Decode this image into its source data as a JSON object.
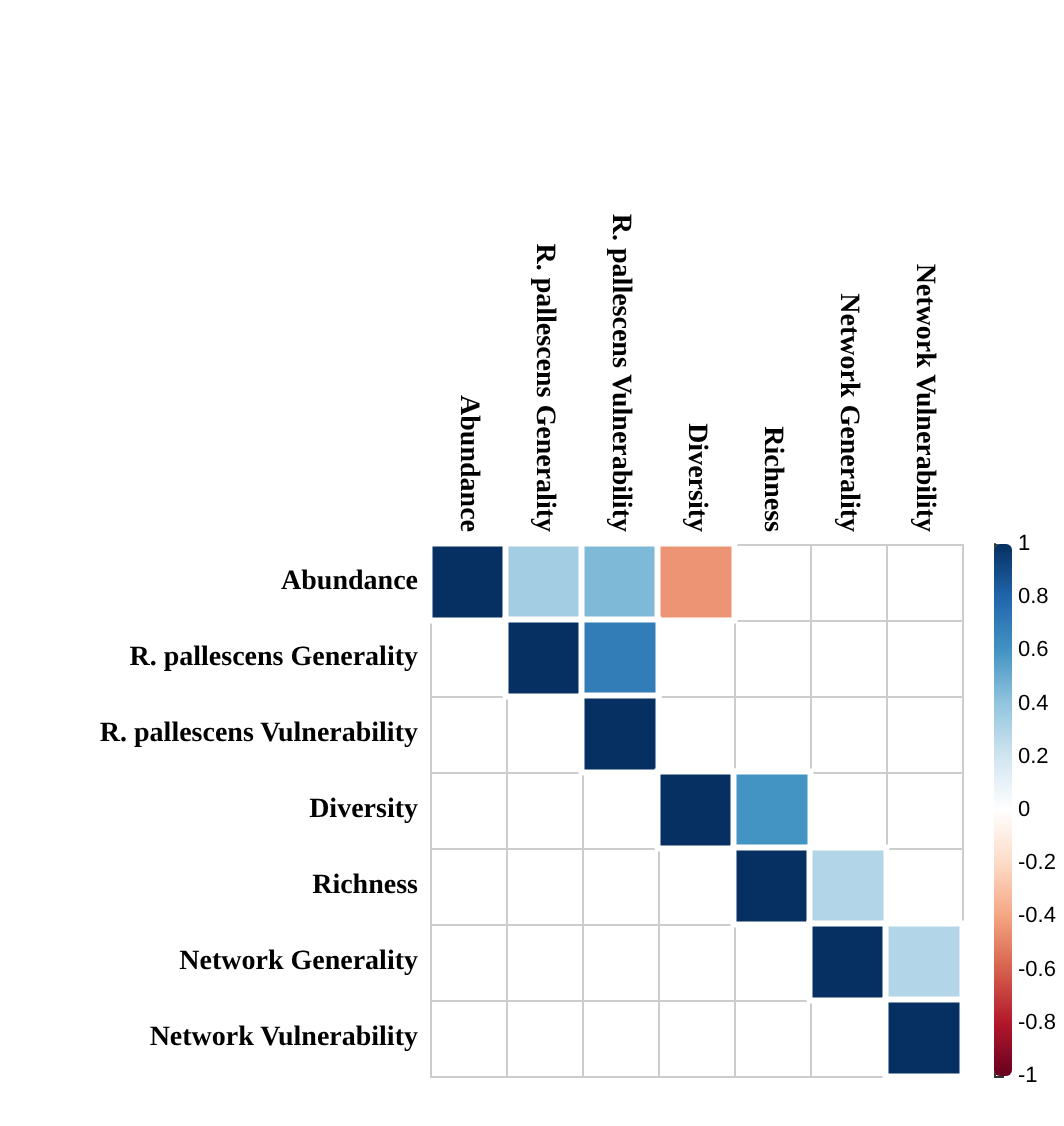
{
  "chart_data": {
    "type": "heatmap",
    "categories": [
      "Abundance",
      "R. pallescens Generality",
      "R. pallescens Vulnerability",
      "Diversity",
      "Richness",
      "Network Generality",
      "Network Vulnerability"
    ],
    "y_categories": [
      "Abundance",
      "R. pallescens Generality",
      "R. pallescens Vulnerability",
      "Diversity",
      "Richness",
      "Network Generality",
      "Network Vulnerability"
    ],
    "cells": [
      [
        1,
        0.35,
        0.45,
        -0.45,
        null,
        null,
        null
      ],
      [
        null,
        1,
        0.7,
        null,
        null,
        null,
        null
      ],
      [
        null,
        null,
        1,
        null,
        null,
        null,
        null
      ],
      [
        null,
        null,
        null,
        1,
        0.6,
        null,
        null
      ],
      [
        null,
        null,
        null,
        null,
        1,
        0.3,
        null
      ],
      [
        null,
        null,
        null,
        null,
        null,
        1,
        0.3
      ],
      [
        null,
        null,
        null,
        null,
        null,
        null,
        1
      ]
    ],
    "clim": [
      -1,
      1
    ],
    "cticks": [
      -1,
      -0.8,
      -0.6,
      -0.4,
      -0.2,
      0,
      0.2,
      0.4,
      0.6,
      0.8,
      1
    ],
    "grid": true
  }
}
